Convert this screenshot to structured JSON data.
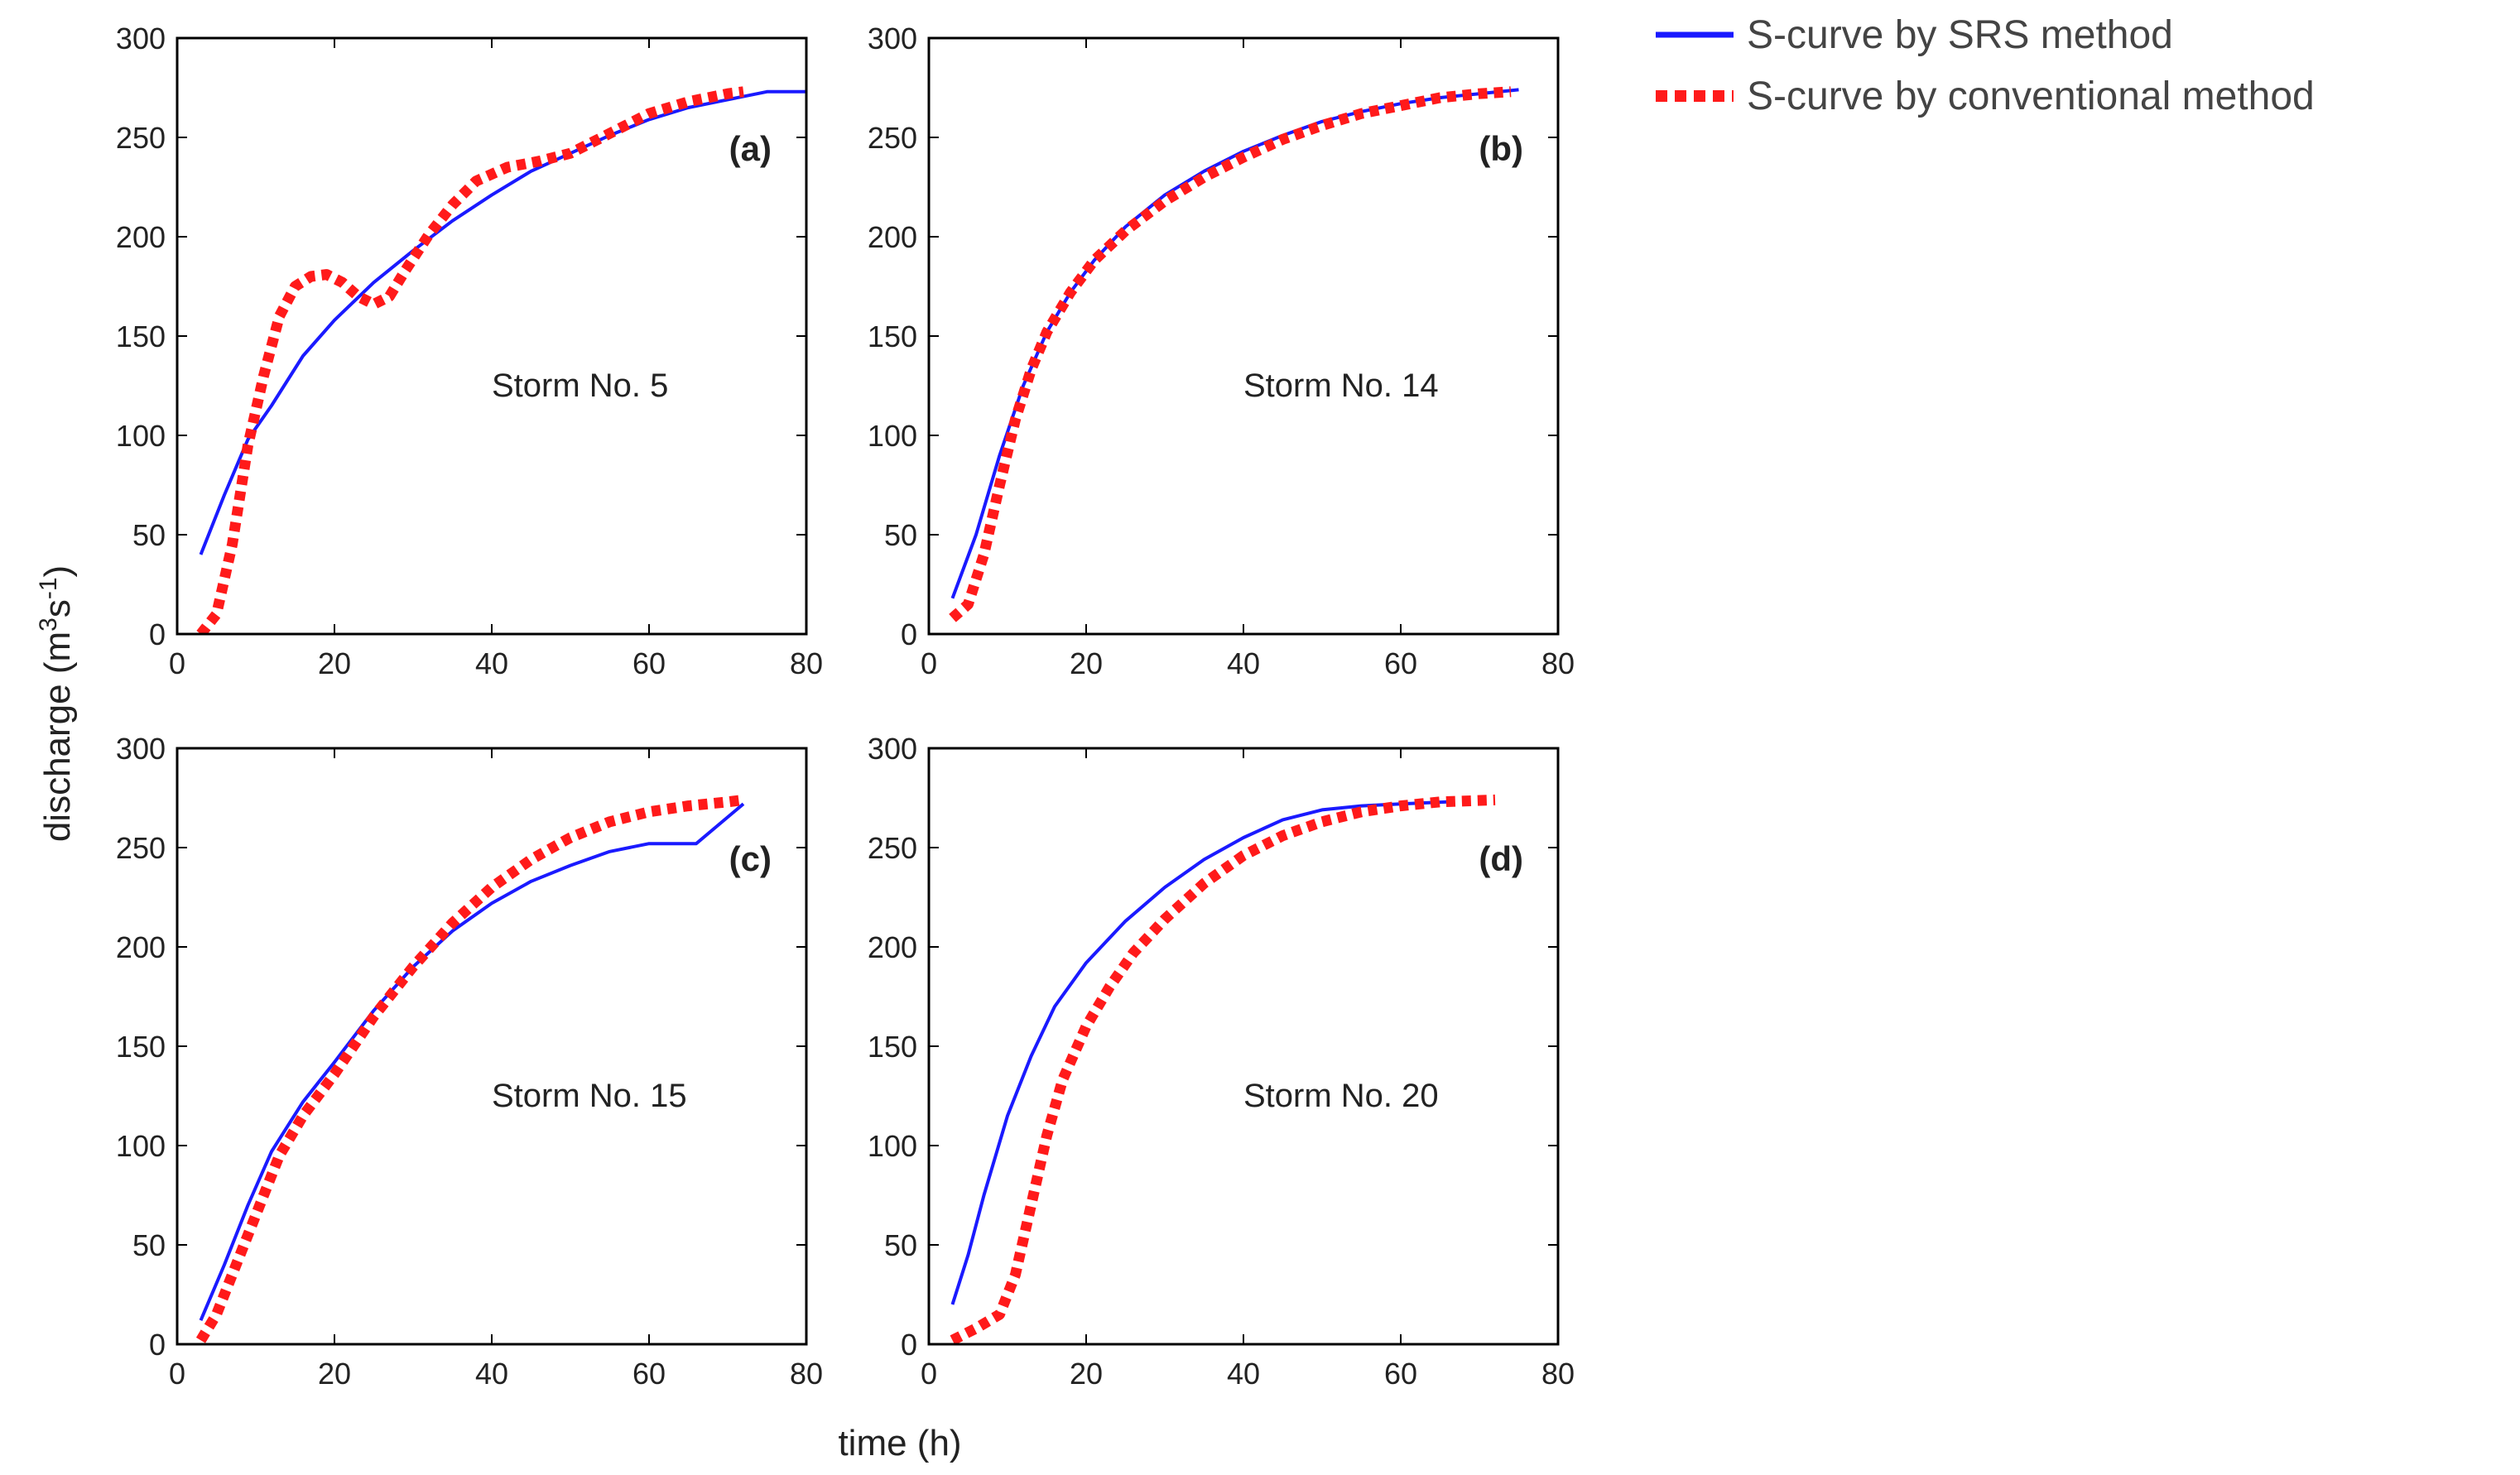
{
  "legend": {
    "srs": "S-curve by SRS method",
    "conventional": "S-curve by conventional method"
  },
  "colors": {
    "srs": "#1a1aff",
    "conventional": "#ff1a1a",
    "axis": "#000000"
  },
  "axis_labels": {
    "x": "time (h)",
    "y_base": "discharge (m",
    "y_sup1": "3",
    "y_mid": "s",
    "y_sup2": "-1",
    "y_end": ")"
  },
  "chart_data": [
    {
      "type": "line",
      "panel": "(a)",
      "annotation": "Storm No. 5",
      "xlabel": "time (h)",
      "ylabel": "discharge (m3s-1)",
      "xlim": [
        0,
        80
      ],
      "ylim": [
        0,
        300
      ],
      "xticks": [
        0,
        20,
        40,
        60,
        80
      ],
      "yticks": [
        0,
        50,
        100,
        150,
        200,
        250,
        300
      ],
      "series": [
        {
          "name": "S-curve by SRS method",
          "style": "solid",
          "x": [
            3,
            6,
            9,
            12,
            16,
            20,
            25,
            30,
            35,
            40,
            45,
            50,
            55,
            60,
            65,
            70,
            75,
            80
          ],
          "y": [
            40,
            70,
            98,
            115,
            140,
            158,
            177,
            193,
            208,
            221,
            233,
            242,
            251,
            259,
            265,
            269,
            273,
            273
          ]
        },
        {
          "name": "S-curve by conventional method",
          "style": "dotted",
          "x": [
            3,
            5,
            7,
            9,
            11,
            13,
            15,
            17,
            19,
            21,
            23,
            25,
            27,
            29,
            32,
            35,
            38,
            42,
            46,
            50,
            55,
            60,
            65,
            70,
            72
          ],
          "y": [
            0,
            10,
            45,
            95,
            130,
            160,
            175,
            180,
            181,
            177,
            170,
            166,
            170,
            183,
            201,
            216,
            228,
            235,
            238,
            242,
            252,
            262,
            268,
            272,
            273
          ]
        }
      ]
    },
    {
      "type": "line",
      "panel": "(b)",
      "annotation": "Storm No. 14",
      "xlabel": "time (h)",
      "ylabel": "discharge (m3s-1)",
      "xlim": [
        0,
        80
      ],
      "ylim": [
        0,
        300
      ],
      "xticks": [
        0,
        20,
        40,
        60,
        80
      ],
      "yticks": [
        0,
        50,
        100,
        150,
        200,
        250,
        300
      ],
      "series": [
        {
          "name": "S-curve by SRS method",
          "style": "solid",
          "x": [
            3,
            6,
            9,
            12,
            15,
            18,
            21,
            25,
            30,
            35,
            40,
            45,
            50,
            55,
            60,
            65,
            70,
            75
          ],
          "y": [
            18,
            50,
            90,
            125,
            152,
            172,
            188,
            205,
            221,
            233,
            243,
            251,
            258,
            263,
            267,
            270,
            272,
            274
          ]
        },
        {
          "name": "S-curve by conventional method",
          "style": "dotted",
          "x": [
            3,
            5,
            7,
            9,
            11,
            13,
            15,
            18,
            21,
            25,
            30,
            35,
            40,
            45,
            50,
            55,
            60,
            65,
            70,
            74
          ],
          "y": [
            8,
            15,
            40,
            75,
            108,
            133,
            152,
            172,
            188,
            203,
            218,
            230,
            240,
            249,
            256,
            262,
            266,
            270,
            272,
            273
          ]
        }
      ]
    },
    {
      "type": "line",
      "panel": "(c)",
      "annotation": "Storm No. 15",
      "xlabel": "time (h)",
      "ylabel": "discharge (m3s-1)",
      "xlim": [
        0,
        80
      ],
      "ylim": [
        0,
        300
      ],
      "xticks": [
        0,
        20,
        40,
        60,
        80
      ],
      "yticks": [
        0,
        50,
        100,
        150,
        200,
        250,
        300
      ],
      "series": [
        {
          "name": "S-curve by SRS method",
          "style": "solid",
          "x": [
            3,
            6,
            9,
            12,
            16,
            20,
            25,
            30,
            35,
            40,
            45,
            50,
            55,
            60,
            66,
            72
          ],
          "y": [
            12,
            40,
            70,
            97,
            122,
            142,
            168,
            190,
            208,
            222,
            233,
            241,
            248,
            252,
            252,
            272
          ]
        },
        {
          "name": "S-curve by conventional method",
          "style": "dotted",
          "x": [
            3,
            5,
            7,
            9,
            11,
            13,
            16,
            20,
            25,
            30,
            35,
            40,
            45,
            50,
            55,
            60,
            65,
            70,
            72
          ],
          "y": [
            2,
            15,
            35,
            55,
            75,
            95,
            115,
            136,
            165,
            190,
            212,
            230,
            244,
            255,
            263,
            268,
            271,
            273,
            274
          ]
        }
      ]
    },
    {
      "type": "line",
      "panel": "(d)",
      "annotation": "Storm No. 20",
      "xlabel": "time (h)",
      "ylabel": "discharge (m3s-1)",
      "xlim": [
        0,
        80
      ],
      "ylim": [
        0,
        300
      ],
      "xticks": [
        0,
        20,
        40,
        60,
        80
      ],
      "yticks": [
        0,
        50,
        100,
        150,
        200,
        250,
        300
      ],
      "series": [
        {
          "name": "S-curve by SRS method",
          "style": "solid",
          "x": [
            3,
            5,
            7,
            10,
            13,
            16,
            20,
            25,
            30,
            35,
            40,
            45,
            50,
            55,
            60,
            66
          ],
          "y": [
            20,
            45,
            75,
            115,
            145,
            170,
            192,
            213,
            230,
            244,
            255,
            264,
            269,
            271,
            272,
            273
          ]
        },
        {
          "name": "S-curve by conventional method",
          "style": "dotted",
          "x": [
            3,
            6,
            9,
            11,
            13,
            15,
            17,
            20,
            23,
            26,
            30,
            35,
            40,
            45,
            50,
            55,
            60,
            65,
            72
          ],
          "y": [
            2,
            8,
            15,
            35,
            70,
            105,
            133,
            160,
            180,
            197,
            214,
            232,
            246,
            256,
            263,
            268,
            271,
            273,
            274
          ]
        }
      ]
    }
  ]
}
